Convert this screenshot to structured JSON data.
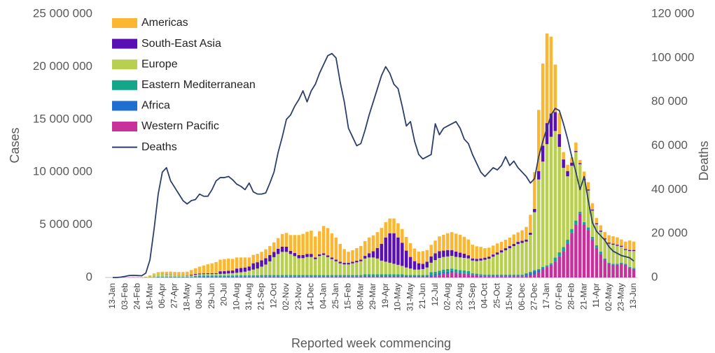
{
  "chart_data": {
    "type": "bar",
    "stacked": true,
    "xlabel": "Reported week commencing",
    "ylabel": "Cases",
    "y2label": "Deaths",
    "legend": "upper left",
    "grid": false,
    "ylim": [
      0,
      25000000
    ],
    "yticks": [
      0,
      {
        "value": 5000000,
        "label": "5 000 000"
      },
      {
        "value": 10000000,
        "label": "10 000 000"
      },
      {
        "value": 15000000,
        "label": "15 000 000"
      },
      {
        "value": 20000000,
        "label": "20 000 000"
      },
      {
        "value": 25000000,
        "label": "25 000 000"
      }
    ],
    "y2lim": [
      0,
      120000
    ],
    "y2ticks": [
      0,
      {
        "value": 20000,
        "label": "20 000"
      },
      {
        "value": 40000,
        "label": "40 000"
      },
      {
        "value": 60000,
        "label": "60 000"
      },
      {
        "value": 80000,
        "label": "80 000"
      },
      {
        "value": 100000,
        "label": "100 000"
      },
      {
        "value": 120000,
        "label": "120 000"
      }
    ],
    "categories": [
      "13-Jan",
      null,
      null,
      "03-Feb",
      null,
      null,
      "24-Feb",
      null,
      null,
      "16-Mar",
      null,
      null,
      "06-Apr",
      null,
      null,
      "27-Apr",
      null,
      null,
      "18-May",
      null,
      null,
      "08-Jun",
      null,
      null,
      "29-Jun",
      null,
      null,
      "20-Jul",
      null,
      null,
      "10-Aug",
      null,
      null,
      "31-Aug",
      null,
      null,
      "21-Sep",
      null,
      null,
      "12-Oct",
      null,
      null,
      "02-Nov",
      null,
      null,
      "23-Nov",
      null,
      null,
      "14-Dec",
      null,
      null,
      "04-Jan",
      null,
      null,
      "25-Jan",
      null,
      null,
      "15-Feb",
      null,
      null,
      "08-Mar",
      null,
      null,
      "29-Mar",
      null,
      null,
      "19-Apr",
      null,
      null,
      "10-May",
      null,
      null,
      "31-May",
      null,
      null,
      "21-Jun",
      null,
      null,
      "12-Jul",
      null,
      null,
      "02-Aug",
      null,
      null,
      "23-Aug",
      null,
      null,
      "13-Sep",
      null,
      null,
      "04-Oct",
      null,
      null,
      "25-Oct",
      null,
      null,
      "15-Nov",
      null,
      null,
      "06-Dec",
      null,
      null,
      "27-Dec",
      null,
      null,
      "17-Jan",
      null,
      null,
      "07-Feb",
      null,
      null,
      "28-Feb",
      null,
      null,
      "21-Mar",
      null,
      null,
      "11-Apr",
      null,
      null,
      "02-May",
      null,
      null,
      "23-May",
      null,
      null,
      "13-Jun"
    ],
    "series": [
      {
        "name": "Americas",
        "color": "#fbb731",
        "values": [
          0,
          0,
          0,
          0,
          0,
          0,
          0,
          0,
          10000,
          30000,
          100000,
          150000,
          200000,
          220000,
          240000,
          250000,
          270000,
          300000,
          350000,
          450000,
          550000,
          650000,
          750000,
          850000,
          950000,
          1050000,
          1100000,
          1150000,
          1150000,
          1100000,
          1050000,
          1000000,
          950000,
          850000,
          800000,
          800000,
          800000,
          850000,
          850000,
          900000,
          1000000,
          1200000,
          1300000,
          1500000,
          1700000,
          1900000,
          2000000,
          2100000,
          2200000,
          2000000,
          2200000,
          2600000,
          2600000,
          2300000,
          2100000,
          1700000,
          1300000,
          1050000,
          1100000,
          1200000,
          1300000,
          1400000,
          1500000,
          1500000,
          1500000,
          1500000,
          1450000,
          1400000,
          1400000,
          1350000,
          1300000,
          1300000,
          1300000,
          1200000,
          1100000,
          1200000,
          1100000,
          1100000,
          1200000,
          1400000,
          1500000,
          1600000,
          1700000,
          1700000,
          1700000,
          1600000,
          1500000,
          1300000,
          1200000,
          1100000,
          900000,
          850000,
          850000,
          850000,
          800000,
          800000,
          800000,
          900000,
          900000,
          1000000,
          1200000,
          1700000,
          3500000,
          5800000,
          7800000,
          8500000,
          7300000,
          4500000,
          2000000,
          700000,
          600000,
          500000,
          800000,
          300000,
          700000,
          700000,
          600000,
          500000,
          500000,
          600000,
          700000,
          700000,
          700000,
          600000,
          700000,
          900000,
          800000
        ]
      },
      {
        "name": "South-East Asia",
        "color": "#5a0fb4",
        "values": [
          0,
          0,
          0,
          0,
          0,
          0,
          0,
          0,
          0,
          0,
          0,
          0,
          20000,
          20000,
          20000,
          20000,
          20000,
          20000,
          20000,
          80000,
          80000,
          80000,
          80000,
          80000,
          80000,
          80000,
          250000,
          250000,
          250000,
          250000,
          400000,
          400000,
          400000,
          400000,
          600000,
          600000,
          600000,
          600000,
          600000,
          500000,
          500000,
          500000,
          500000,
          300000,
          300000,
          300000,
          300000,
          300000,
          300000,
          150000,
          150000,
          150000,
          150000,
          150000,
          150000,
          150000,
          150000,
          150000,
          150000,
          150000,
          150000,
          250000,
          400000,
          600000,
          1000000,
          1600000,
          2300000,
          2800000,
          2900000,
          2600000,
          2200000,
          1600000,
          1100000,
          800000,
          600000,
          500000,
          550000,
          600000,
          650000,
          650000,
          600000,
          600000,
          550000,
          500000,
          450000,
          400000,
          300000,
          200000,
          200000,
          200000,
          200000,
          200000,
          200000,
          200000,
          200000,
          200000,
          200000,
          200000,
          200000,
          200000,
          200000,
          200000,
          300000,
          800000,
          1500000,
          2000000,
          2200000,
          1800000,
          1200000,
          800000,
          500000,
          300000,
          100000,
          100000,
          100000,
          100000,
          100000,
          100000,
          100000,
          100000,
          100000,
          100000,
          100000,
          100000,
          100000,
          100000,
          100000
        ]
      },
      {
        "name": "Europe",
        "color": "#b8cf4f",
        "values": [
          0,
          0,
          0,
          0,
          0,
          0,
          0,
          10000,
          50000,
          150000,
          250000,
          280000,
          250000,
          230000,
          220000,
          180000,
          150000,
          120000,
          100000,
          100000,
          100000,
          110000,
          120000,
          130000,
          130000,
          140000,
          150000,
          160000,
          200000,
          220000,
          250000,
          300000,
          350000,
          450000,
          550000,
          650000,
          800000,
          1000000,
          1300000,
          1700000,
          2000000,
          2200000,
          2200000,
          2000000,
          1800000,
          1600000,
          1600000,
          1700000,
          1700000,
          1500000,
          1800000,
          1900000,
          1700000,
          1500000,
          1300000,
          1100000,
          1000000,
          1000000,
          1100000,
          1200000,
          1300000,
          1500000,
          1600000,
          1600000,
          1500000,
          1300000,
          1200000,
          1100000,
          1000000,
          900000,
          800000,
          700000,
          600000,
          500000,
          500000,
          550000,
          700000,
          900000,
          1100000,
          1200000,
          1200000,
          1200000,
          1200000,
          1200000,
          1200000,
          1200000,
          1200000,
          1200000,
          1200000,
          1300000,
          1400000,
          1500000,
          1700000,
          1900000,
          2100000,
          2300000,
          2500000,
          2700000,
          2900000,
          3000000,
          3000000,
          3500000,
          5500000,
          8500000,
          10000000,
          11500000,
          12000000,
          12000000,
          10000000,
          7500000,
          6000000,
          6000000,
          6500000,
          4500000,
          4000000,
          3500000,
          2500000,
          2000000,
          1900000,
          1800000,
          1800000,
          1800000,
          1700000,
          1500000,
          1300000,
          1500000,
          1600000
        ]
      },
      {
        "name": "Eastern Mediterranean",
        "color": "#13a689",
        "values": [
          0,
          0,
          0,
          0,
          0,
          0,
          0,
          0,
          0,
          0,
          20000,
          50000,
          50000,
          50000,
          50000,
          50000,
          50000,
          50000,
          50000,
          50000,
          120000,
          120000,
          120000,
          120000,
          120000,
          120000,
          120000,
          120000,
          120000,
          120000,
          120000,
          120000,
          120000,
          120000,
          120000,
          120000,
          150000,
          150000,
          150000,
          150000,
          150000,
          150000,
          150000,
          150000,
          150000,
          150000,
          150000,
          150000,
          150000,
          150000,
          150000,
          150000,
          150000,
          150000,
          150000,
          150000,
          150000,
          150000,
          150000,
          150000,
          150000,
          200000,
          200000,
          200000,
          200000,
          200000,
          200000,
          200000,
          200000,
          200000,
          200000,
          150000,
          150000,
          150000,
          150000,
          150000,
          150000,
          250000,
          250000,
          250000,
          250000,
          250000,
          250000,
          250000,
          250000,
          250000,
          250000,
          100000,
          100000,
          100000,
          100000,
          100000,
          100000,
          100000,
          100000,
          100000,
          100000,
          100000,
          100000,
          100000,
          100000,
          100000,
          100000,
          100000,
          100000,
          100000,
          100000,
          350000,
          350000,
          350000,
          350000,
          350000,
          350000,
          200000,
          200000,
          200000,
          200000,
          200000,
          200000,
          60000,
          60000,
          60000,
          60000,
          60000,
          60000,
          60000,
          60000
        ]
      },
      {
        "name": "Africa",
        "color": "#1f6fd0",
        "values": [
          0,
          0,
          0,
          0,
          0,
          0,
          0,
          0,
          0,
          0,
          0,
          10000,
          10000,
          10000,
          10000,
          10000,
          10000,
          10000,
          10000,
          10000,
          10000,
          50000,
          50000,
          50000,
          50000,
          50000,
          50000,
          50000,
          50000,
          50000,
          50000,
          50000,
          50000,
          50000,
          50000,
          50000,
          50000,
          50000,
          50000,
          50000,
          50000,
          50000,
          50000,
          50000,
          50000,
          50000,
          50000,
          50000,
          50000,
          50000,
          50000,
          50000,
          50000,
          50000,
          50000,
          50000,
          50000,
          50000,
          50000,
          50000,
          50000,
          50000,
          50000,
          50000,
          50000,
          50000,
          50000,
          50000,
          50000,
          50000,
          50000,
          50000,
          50000,
          50000,
          50000,
          50000,
          50000,
          150000,
          150000,
          150000,
          150000,
          150000,
          150000,
          60000,
          60000,
          60000,
          60000,
          60000,
          60000,
          60000,
          60000,
          60000,
          60000,
          60000,
          60000,
          60000,
          60000,
          60000,
          60000,
          60000,
          150000,
          250000,
          300000,
          200000,
          100000,
          50000,
          50000,
          50000,
          50000,
          50000,
          50000,
          50000,
          50000,
          50000,
          50000,
          50000,
          50000,
          50000,
          50000,
          50000,
          50000,
          50000,
          50000,
          50000,
          50000,
          50000,
          50000
        ]
      },
      {
        "name": "Western Pacific",
        "color": "#c8309b",
        "values": [
          0,
          0,
          0,
          10000,
          20000,
          30000,
          20000,
          20000,
          20000,
          20000,
          20000,
          20000,
          20000,
          20000,
          20000,
          20000,
          20000,
          20000,
          20000,
          20000,
          20000,
          20000,
          20000,
          20000,
          20000,
          20000,
          20000,
          20000,
          20000,
          20000,
          30000,
          30000,
          30000,
          30000,
          30000,
          30000,
          30000,
          30000,
          30000,
          30000,
          30000,
          30000,
          30000,
          30000,
          30000,
          30000,
          40000,
          40000,
          40000,
          40000,
          40000,
          40000,
          40000,
          40000,
          40000,
          40000,
          40000,
          40000,
          40000,
          40000,
          40000,
          50000,
          50000,
          50000,
          50000,
          50000,
          50000,
          50000,
          50000,
          50000,
          50000,
          50000,
          50000,
          50000,
          50000,
          50000,
          50000,
          100000,
          150000,
          250000,
          350000,
          400000,
          450000,
          450000,
          400000,
          350000,
          300000,
          250000,
          200000,
          150000,
          120000,
          120000,
          120000,
          120000,
          120000,
          120000,
          120000,
          120000,
          120000,
          120000,
          150000,
          200000,
          300000,
          500000,
          800000,
          1000000,
          1200000,
          1500000,
          2000000,
          2500000,
          3200000,
          4200000,
          5000000,
          6000000,
          5000000,
          4500000,
          3600000,
          2800000,
          2200000,
          1700000,
          1300000,
          1200000,
          1200000,
          1300000,
          1200000,
          900000,
          800000
        ]
      },
      {
        "name": "Deaths",
        "type": "line",
        "axis": "y2",
        "color": "#2b3f6b",
        "values": [
          0,
          0,
          200,
          500,
          900,
          1000,
          900,
          800,
          2000,
          8000,
          22000,
          38000,
          48000,
          50000,
          44000,
          41000,
          38000,
          35000,
          33500,
          35000,
          35500,
          38000,
          37000,
          37000,
          40000,
          44000,
          45500,
          45500,
          46000,
          44500,
          42500,
          41500,
          40000,
          43000,
          39000,
          38000,
          38000,
          38500,
          43000,
          48000,
          57000,
          64000,
          72000,
          74000,
          78000,
          81000,
          85000,
          80000,
          85000,
          88000,
          93000,
          97000,
          101000,
          102000,
          100000,
          89000,
          80000,
          68000,
          64000,
          60000,
          61000,
          67000,
          74000,
          80000,
          86000,
          92000,
          96000,
          93000,
          88000,
          86000,
          78000,
          69000,
          71000,
          62000,
          56000,
          54000,
          55000,
          56000,
          70000,
          65000,
          68000,
          69000,
          70000,
          71000,
          68000,
          63000,
          61000,
          56000,
          52000,
          48000,
          46000,
          48000,
          50000,
          49000,
          51000,
          55000,
          51000,
          53000,
          50000,
          48000,
          46000,
          43000,
          45000,
          55000,
          62000,
          68000,
          74000,
          77000,
          76000,
          70000,
          63000,
          55000,
          48000,
          40000,
          46000,
          35000,
          25000,
          21000,
          19000,
          17000,
          14000,
          12000,
          11000,
          10000,
          9500,
          9000,
          7500
        ]
      }
    ]
  }
}
